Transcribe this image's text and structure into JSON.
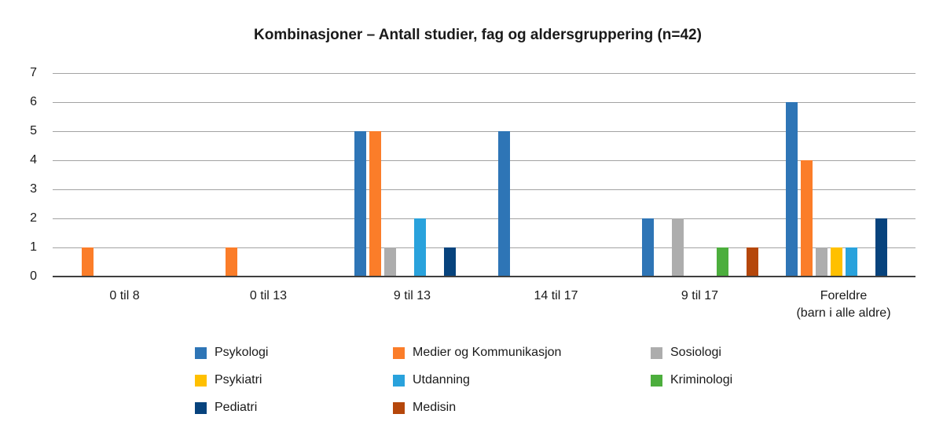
{
  "chart_data": {
    "type": "bar",
    "title": "Kombinasjoner – Antall studier, fag og aldersgruppering (n=42)",
    "categories": [
      "0 til 8",
      "0 til 13",
      "9 til 13",
      "14 til 17",
      "9 til 17",
      "Foreldre\n(barn i alle aldre)"
    ],
    "series": [
      {
        "name": "Psykologi",
        "color": "#2E75B6",
        "values": [
          0,
          0,
          5,
          5,
          2,
          6
        ]
      },
      {
        "name": "Medier og Kommunikasjon",
        "color": "#FB7D29",
        "values": [
          1,
          1,
          5,
          0,
          0,
          4
        ]
      },
      {
        "name": "Sosiologi",
        "color": "#ADADAD",
        "values": [
          0,
          0,
          1,
          0,
          2,
          1
        ]
      },
      {
        "name": "Psykiatri",
        "color": "#FFC000",
        "values": [
          0,
          0,
          0,
          0,
          0,
          1
        ]
      },
      {
        "name": "Utdanning",
        "color": "#29A2DC",
        "values": [
          0,
          0,
          2,
          0,
          0,
          1
        ]
      },
      {
        "name": "Kriminologi",
        "color": "#4CAE3D",
        "values": [
          0,
          0,
          0,
          0,
          1,
          0
        ]
      },
      {
        "name": "Pediatri",
        "color": "#07437D",
        "values": [
          0,
          0,
          1,
          0,
          0,
          2
        ]
      },
      {
        "name": "Medisin",
        "color": "#B5470B",
        "values": [
          0,
          0,
          0,
          0,
          1,
          0
        ]
      }
    ],
    "ylim": [
      0,
      7
    ],
    "yticks": [
      0,
      1,
      2,
      3,
      4,
      5,
      6,
      7
    ],
    "grid": "horizontal",
    "gridline_color": "#A3A3A3",
    "axis_line_color": "#3F3F3F",
    "legend_position": "bottom",
    "legend_columns": 3
  }
}
